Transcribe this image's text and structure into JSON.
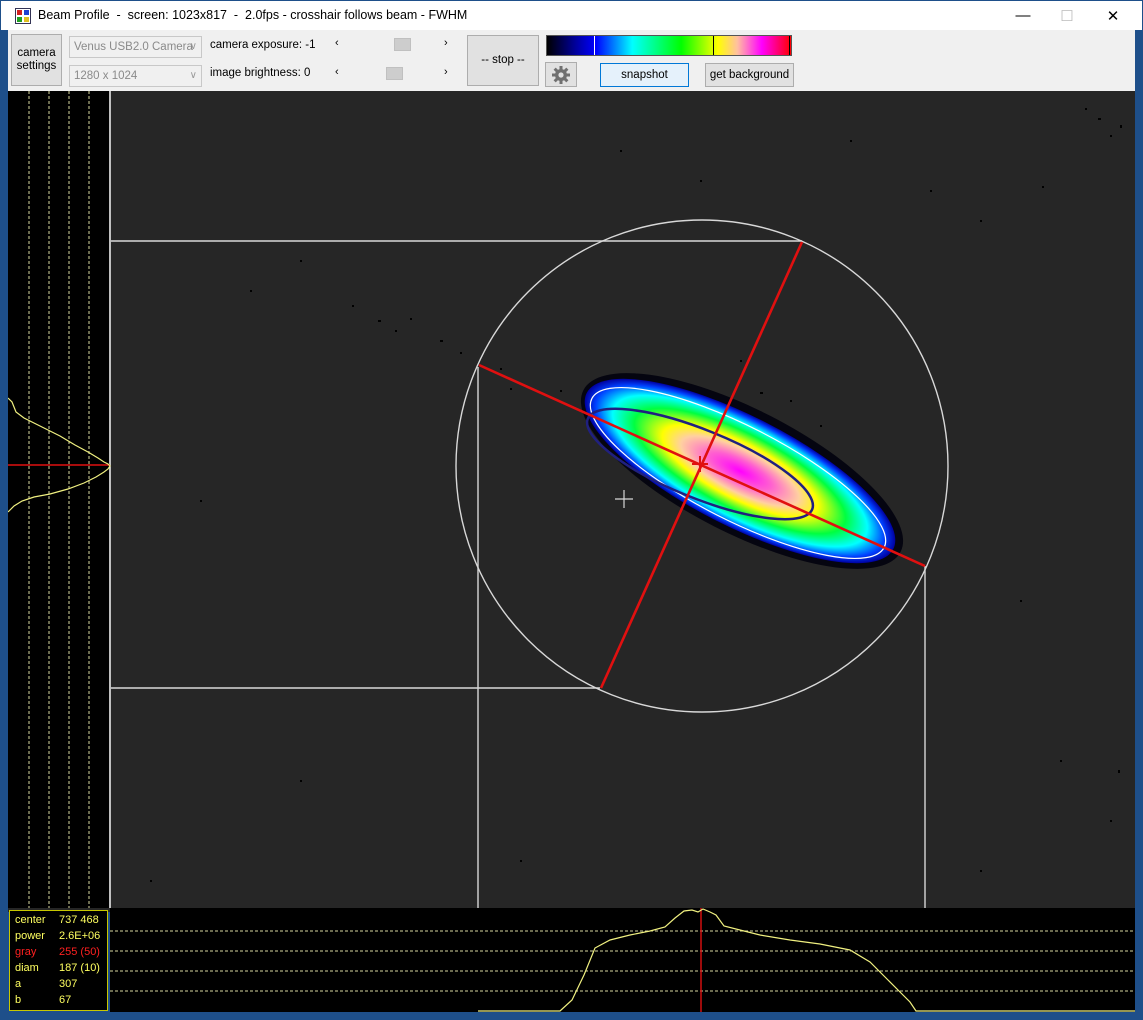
{
  "window": {
    "title": "Beam Profile  -  screen: 1023x817  -  2.0fps - crosshair follows beam - FWHM",
    "minimize": "—",
    "maximize": "☐",
    "close": "✕"
  },
  "toolbar": {
    "camera_settings_label": "camera\nsettings",
    "camera_select": "Venus USB2.0 Camera",
    "resolution_select": "1280 x 1024",
    "exposure_label": "camera exposure: -1",
    "brightness_label": "image brightness: 0",
    "exposure_slider_value": 0.6,
    "brightness_slider_value": 0.5,
    "stop_label": "-- stop --",
    "snapshot_label": "snapshot",
    "get_background_label": "get background",
    "settings_icon": "gear-icon",
    "scroll_left": "‹",
    "scroll_right": "›"
  },
  "colors": {
    "window_border": "#1e4f8a",
    "crosshair_red": "#e01010",
    "info_yellow": "#ffff60",
    "gray_red": "#ff2020",
    "profile_yellow": "#f0f080"
  },
  "info": {
    "rows": [
      {
        "key": "center",
        "value": "737 468",
        "color": "#ffff60"
      },
      {
        "key": "power",
        "value": "2.6E+06",
        "color": "#ffff60"
      },
      {
        "key": "gray",
        "value": "255 (50)",
        "color": "#ff2020"
      },
      {
        "key": "diam",
        "value": "187 (10)",
        "color": "#ffff60"
      },
      {
        "key": "a",
        "value": "307",
        "color": "#ffff60"
      },
      {
        "key": "b",
        "value": "67",
        "color": "#ffff60"
      }
    ]
  }
}
